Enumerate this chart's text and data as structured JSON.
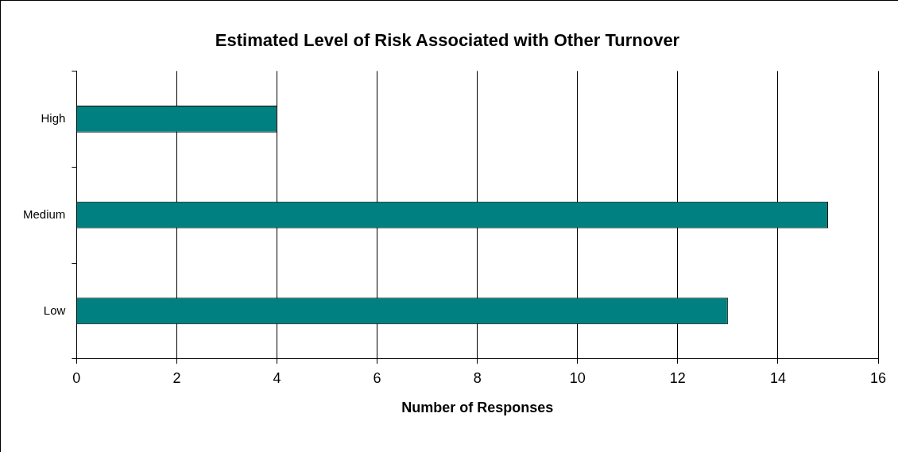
{
  "chart_data": {
    "type": "bar",
    "orientation": "horizontal",
    "title": "Estimated Level of Risk Associated with Other Turnover",
    "xlabel": "Number of Responses",
    "categories": [
      "High",
      "Medium",
      "Low"
    ],
    "values": [
      4,
      15,
      13
    ],
    "color": "#008080",
    "xlim": [
      0,
      16
    ],
    "xticks": [
      0,
      2,
      4,
      6,
      8,
      10,
      12,
      14,
      16
    ],
    "grid": "x",
    "legend": false
  }
}
